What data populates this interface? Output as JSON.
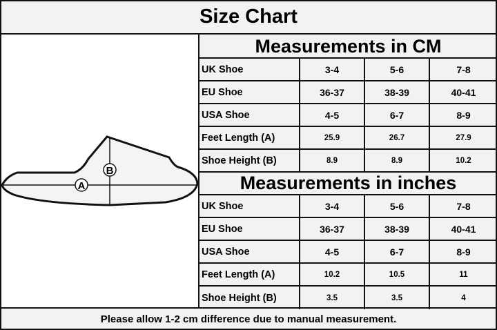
{
  "title": "Size Chart",
  "cm": {
    "header": "Measurements in CM",
    "rows": [
      {
        "label": "UK Shoe",
        "values": [
          "3-4",
          "5-6",
          "7-8"
        ]
      },
      {
        "label": "EU Shoe",
        "values": [
          "36-37",
          "38-39",
          "40-41"
        ]
      },
      {
        "label": "USA Shoe",
        "values": [
          "4-5",
          "6-7",
          "8-9"
        ]
      },
      {
        "label": "Feet Length (A)",
        "values": [
          "25.9",
          "26.7",
          "27.9"
        ]
      },
      {
        "label": "Shoe Height (B)",
        "values": [
          "8.9",
          "8.9",
          "10.2"
        ]
      }
    ]
  },
  "inches": {
    "header": "Measurements in inches",
    "rows": [
      {
        "label": "UK Shoe",
        "values": [
          "3-4",
          "5-6",
          "7-8"
        ]
      },
      {
        "label": "EU Shoe",
        "values": [
          "36-37",
          "38-39",
          "40-41"
        ]
      },
      {
        "label": "USA Shoe",
        "values": [
          "4-5",
          "6-7",
          "8-9"
        ]
      },
      {
        "label": "Feet Length (A)",
        "values": [
          "10.2",
          "10.5",
          "11"
        ]
      },
      {
        "label": "Shoe Height (B)",
        "values": [
          "3.5",
          "3.5",
          "4"
        ]
      }
    ]
  },
  "diagram": {
    "label_a": "A",
    "label_b": "B"
  },
  "footer": "Please allow 1-2 cm difference due to manual measurement."
}
